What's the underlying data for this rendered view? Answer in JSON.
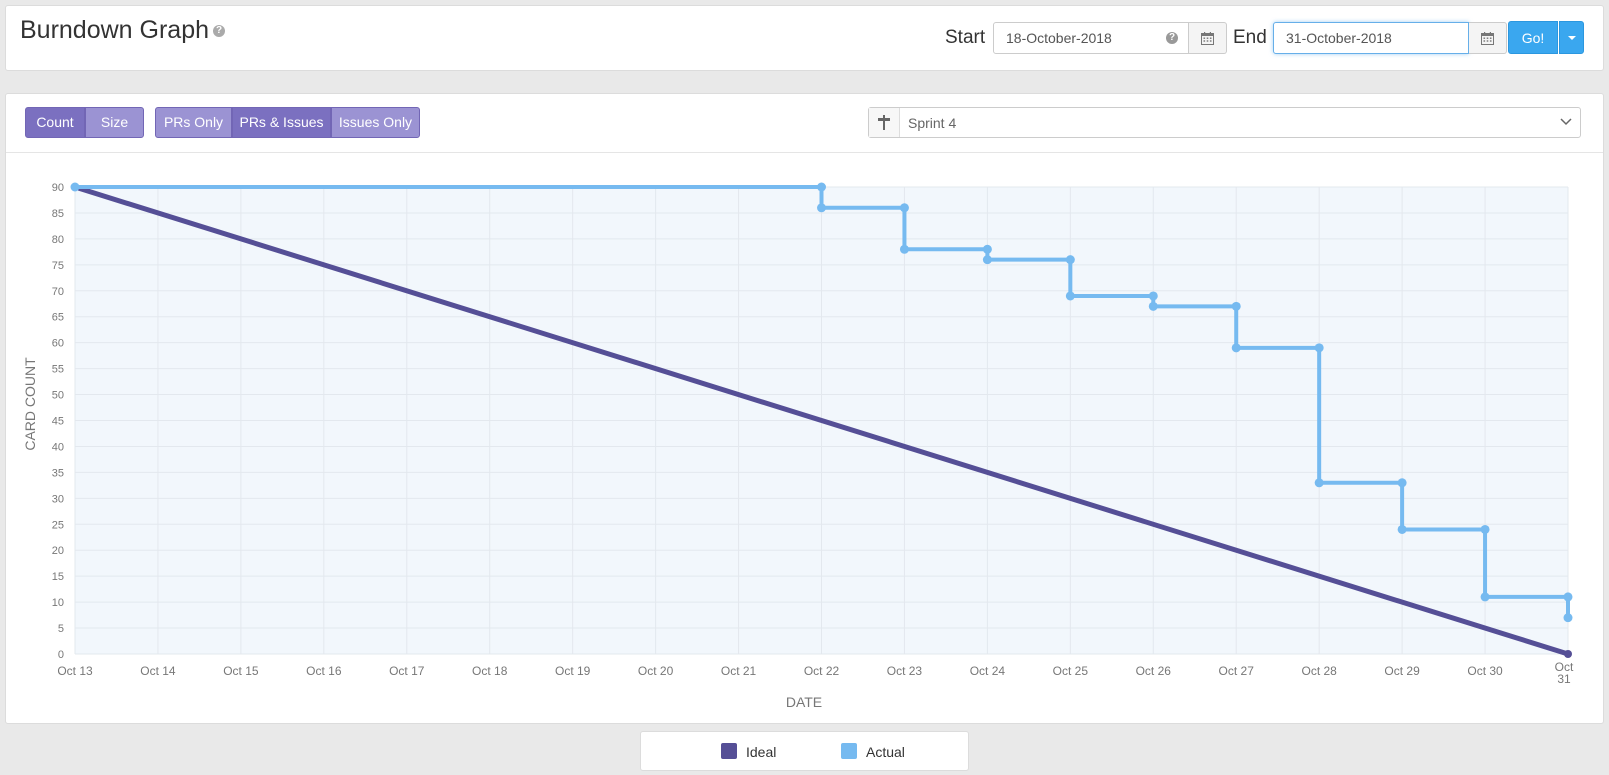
{
  "header": {
    "title": "Burndown Graph",
    "start_label": "Start",
    "start_value": "18-October-2018",
    "end_label": "End",
    "end_value": "31-October-2018",
    "go_label": "Go!"
  },
  "toolbar": {
    "metric_toggle": [
      {
        "label": "Count",
        "active": true
      },
      {
        "label": "Size",
        "active": false
      }
    ],
    "scope_toggle": [
      {
        "label": "PRs Only",
        "active": false
      },
      {
        "label": "PRs & Issues",
        "active": true
      },
      {
        "label": "Issues Only",
        "active": false
      }
    ],
    "sprint_selected": "Sprint 4"
  },
  "colors": {
    "ideal": "#554f96",
    "actual": "#76baf0",
    "accent": "#3aa7ef",
    "toggle_active": "#7b70c0",
    "toggle_inactive": "#9b93d3"
  },
  "chart_data": {
    "type": "line",
    "xlabel": "DATE",
    "ylabel": "CARD COUNT",
    "x_tick_labels": [
      "Oct 13",
      "Oct 14",
      "Oct 15",
      "Oct 16",
      "Oct 17",
      "Oct 18",
      "Oct 19",
      "Oct 20",
      "Oct 21",
      "Oct 22",
      "Oct 23",
      "Oct 24",
      "Oct 25",
      "Oct 26",
      "Oct 27",
      "Oct 28",
      "Oct 29",
      "Oct 30",
      "Oct 31"
    ],
    "xlim": [
      "Oct 13",
      "Oct 31"
    ],
    "y_ticks": [
      0,
      5,
      10,
      15,
      20,
      25,
      30,
      35,
      40,
      45,
      50,
      55,
      60,
      65,
      70,
      75,
      80,
      85,
      90
    ],
    "ylim": [
      0,
      90
    ],
    "grid": true,
    "legend_position": "bottom",
    "series": [
      {
        "name": "Ideal",
        "color": "#554f96",
        "points": [
          {
            "x": "Oct 13",
            "y": 90
          },
          {
            "x": "Oct 31",
            "y": 0
          }
        ]
      },
      {
        "name": "Actual",
        "color": "#76baf0",
        "points": [
          {
            "x": "Oct 13",
            "y": 90
          },
          {
            "x": "Oct 22",
            "y": 90
          },
          {
            "x": "Oct 22",
            "y": 86
          },
          {
            "x": "Oct 23",
            "y": 86
          },
          {
            "x": "Oct 23",
            "y": 78
          },
          {
            "x": "Oct 24",
            "y": 78
          },
          {
            "x": "Oct 24",
            "y": 76
          },
          {
            "x": "Oct 25",
            "y": 76
          },
          {
            "x": "Oct 25",
            "y": 69
          },
          {
            "x": "Oct 26",
            "y": 69
          },
          {
            "x": "Oct 26",
            "y": 67
          },
          {
            "x": "Oct 27",
            "y": 67
          },
          {
            "x": "Oct 27",
            "y": 59
          },
          {
            "x": "Oct 28",
            "y": 59
          },
          {
            "x": "Oct 28",
            "y": 33
          },
          {
            "x": "Oct 29",
            "y": 33
          },
          {
            "x": "Oct 29",
            "y": 24
          },
          {
            "x": "Oct 30",
            "y": 24
          },
          {
            "x": "Oct 30",
            "y": 11
          },
          {
            "x": "Oct 31",
            "y": 11
          },
          {
            "x": "Oct 31",
            "y": 7
          }
        ]
      }
    ]
  },
  "legend": {
    "ideal_label": "Ideal",
    "actual_label": "Actual"
  }
}
